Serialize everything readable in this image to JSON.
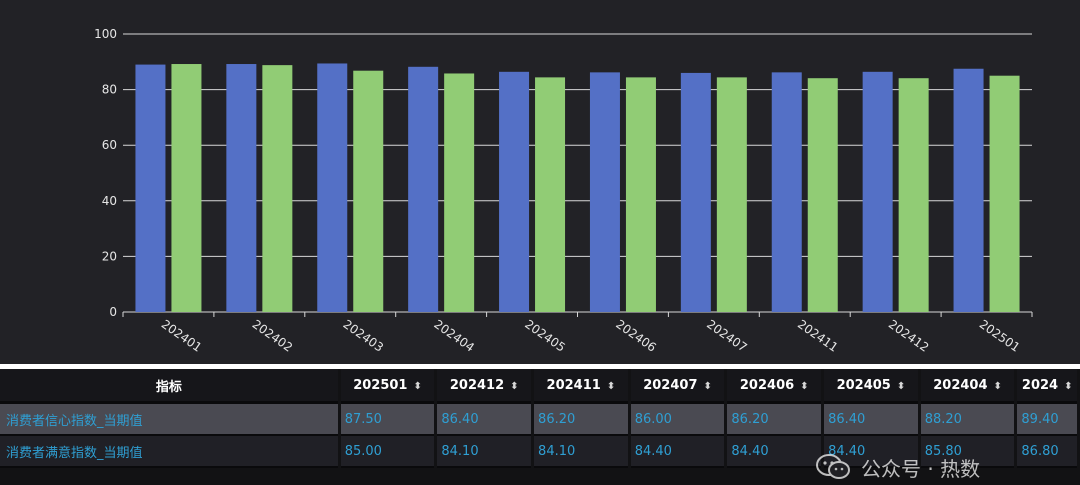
{
  "chart_data": {
    "type": "bar",
    "categories": [
      "202401",
      "202402",
      "202403",
      "202404",
      "202405",
      "202406",
      "202407",
      "202411",
      "202412",
      "202501"
    ],
    "series": [
      {
        "values": [
          89.0,
          89.2,
          89.4,
          88.2,
          86.4,
          86.2,
          86.0,
          86.2,
          86.4,
          87.5
        ],
        "color": "#5470c6"
      },
      {
        "values": [
          89.2,
          88.8,
          86.8,
          85.8,
          84.4,
          84.4,
          84.4,
          84.1,
          84.1,
          85.0
        ],
        "color": "#91cc75"
      }
    ],
    "yticks": [
      0,
      20,
      40,
      60,
      80,
      100
    ],
    "ylim": [
      0,
      100
    ],
    "grid": true
  },
  "table": {
    "header_label": "指标",
    "columns": [
      "202501",
      "202412",
      "202411",
      "202407",
      "202406",
      "202405",
      "202404",
      "2024"
    ],
    "sort_glyph": "⬍",
    "rows": [
      {
        "label": "消费者信心指数_当期值",
        "values": [
          "87.50",
          "86.40",
          "86.20",
          "86.00",
          "86.20",
          "86.40",
          "88.20",
          "89.40"
        ]
      },
      {
        "label": "消费者满意指数_当期值",
        "values": [
          "85.00",
          "84.10",
          "84.10",
          "84.40",
          "84.40",
          "84.40",
          "85.80",
          "86.80"
        ]
      }
    ]
  },
  "watermark": {
    "text": "公众号 · 热数"
  },
  "colors": {
    "label_text": "#2f9fd3",
    "grid": "#d8d8d8",
    "axis_text": "#e6e6e6"
  }
}
